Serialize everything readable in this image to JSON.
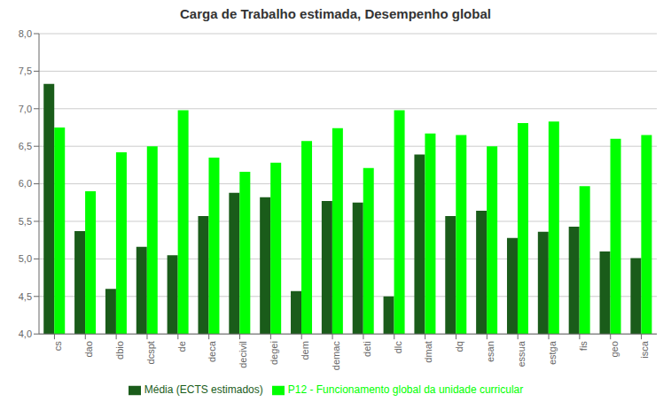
{
  "chart_data": {
    "type": "bar",
    "title": "Carga de Trabalho estimada, Desempenho global",
    "categories": [
      "cs",
      "dao",
      "dbio",
      "dcspt",
      "de",
      "deca",
      "decivil",
      "degei",
      "dem",
      "demac",
      "deti",
      "dlc",
      "dmat",
      "dq",
      "esan",
      "essua",
      "estga",
      "fis",
      "geo",
      "isca"
    ],
    "series": [
      {
        "name": "Média (ECTS estimados)",
        "color": "#1a5c1a",
        "values": [
          7.33,
          5.37,
          4.6,
          5.16,
          5.05,
          5.57,
          5.88,
          5.82,
          4.57,
          5.77,
          5.75,
          4.5,
          6.39,
          5.57,
          5.64,
          5.28,
          5.36,
          5.43,
          5.1,
          5.01
        ]
      },
      {
        "name": "P12 - Funcionamento global da unidade curricular",
        "color": "#00ff00",
        "values": [
          6.75,
          5.9,
          6.42,
          6.5,
          6.98,
          6.35,
          6.16,
          6.28,
          6.57,
          6.74,
          6.21,
          6.98,
          6.67,
          6.65,
          6.5,
          6.81,
          6.83,
          5.97,
          6.6,
          6.65
        ]
      }
    ],
    "ylim": [
      4.0,
      8.0
    ],
    "yticks": [
      {
        "value": 4.0,
        "label": "4,0"
      },
      {
        "value": 4.5,
        "label": "4,5"
      },
      {
        "value": 5.0,
        "label": "5,0"
      },
      {
        "value": 5.5,
        "label": "5,5"
      },
      {
        "value": 6.0,
        "label": "6,0"
      },
      {
        "value": 6.5,
        "label": "6,5"
      },
      {
        "value": 7.0,
        "label": "7,0"
      },
      {
        "value": 7.5,
        "label": "7,5"
      },
      {
        "value": 8.0,
        "label": "8,0"
      }
    ],
    "grid": true,
    "legend": "bottom"
  }
}
